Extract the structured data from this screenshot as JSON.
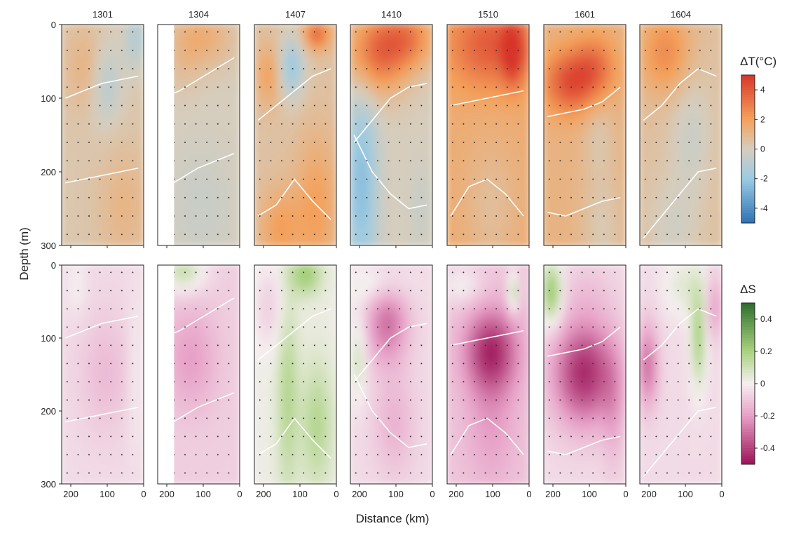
{
  "chart_data": {
    "type": "heatmap",
    "xlabel": "Distance (km)",
    "ylabel": "Depth (m)",
    "xlim": [
      225,
      0
    ],
    "ylim": [
      0,
      300
    ],
    "x_ticks": [
      200,
      100,
      0
    ],
    "y_ticks": [
      0,
      100,
      200,
      300
    ],
    "columns": [
      "1301",
      "1304",
      "1407",
      "1410",
      "1510",
      "1601",
      "1604"
    ],
    "rows": [
      {
        "variable": "temperature",
        "colorbar_label": "ΔT(°C)",
        "range": [
          -5,
          5
        ],
        "ticks": [
          "4",
          "2",
          "0",
          "-2",
          "-4"
        ],
        "tick_values": [
          4,
          2,
          0,
          -2,
          -4
        ],
        "colors": [
          [
            -5,
            "#2f73b5"
          ],
          [
            -2,
            "#9ccbe3"
          ],
          [
            0,
            "#d6cdbd"
          ],
          [
            2,
            "#f4a15b"
          ],
          [
            5,
            "#d8362a"
          ]
        ],
        "panels": [
          {
            "base": 0.3,
            "coverage": [
              225,
              0
            ],
            "features": [
              [
                100,
                80,
                -1.5,
                30,
                40
              ],
              [
                20,
                20,
                -1.5,
                20,
                30
              ],
              [
                150,
                60,
                1,
                40,
                40
              ],
              [
                50,
                250,
                0.8,
                50,
                60
              ]
            ],
            "white_lines": [
              [
                100,
                90,
                80,
                75,
                70
              ],
              [
                215,
                210,
                205,
                200,
                195
              ]
            ]
          },
          {
            "base": 0.0,
            "coverage": [
              180,
              0
            ],
            "features": [
              [
                100,
                20,
                1.5,
                60,
                30
              ],
              [
                150,
                60,
                0.5,
                30,
                30
              ],
              [
                100,
                250,
                -0.5,
                60,
                60
              ]
            ],
            "white_lines": [
              [
                100,
                90,
                75,
                60,
                45
              ],
              [
                225,
                210,
                195,
                185,
                175
              ]
            ]
          },
          {
            "base": 0.5,
            "coverage": [
              225,
              0
            ],
            "features": [
              [
                120,
                60,
                -2.5,
                25,
                30
              ],
              [
                50,
                15,
                3,
                25,
                15
              ],
              [
                180,
                70,
                1.5,
                25,
                30
              ],
              [
                50,
                250,
                1.5,
                40,
                70
              ],
              [
                150,
                280,
                1.5,
                40,
                40
              ]
            ],
            "white_lines": [
              [
                130,
                110,
                90,
                70,
                60
              ],
              [
                260,
                245,
                210,
                240,
                265
              ]
            ]
          },
          {
            "base": 0.0,
            "coverage": [
              225,
              0
            ],
            "features": [
              [
                150,
                40,
                3.5,
                60,
                40
              ],
              [
                190,
                220,
                -2.5,
                30,
                100
              ],
              [
                60,
                20,
                2.5,
                50,
                30
              ],
              [
                30,
                250,
                -0.5,
                20,
                40
              ]
            ],
            "white_lines": [
              [
                160,
                130,
                100,
                85,
                80
              ],
              [
                150,
                200,
                230,
                250,
                245
              ]
            ]
          },
          {
            "base": 1.5,
            "coverage": [
              225,
              0
            ],
            "features": [
              [
                100,
                30,
                2.5,
                80,
                40
              ],
              [
                40,
                40,
                3,
                20,
                30
              ],
              [
                100,
                250,
                -0.8,
                50,
                60
              ]
            ],
            "white_lines": [
              [
                110,
                105,
                100,
                95,
                90
              ],
              [
                260,
                220,
                210,
                230,
                260
              ]
            ]
          },
          {
            "base": 1.2,
            "coverage": [
              225,
              0
            ],
            "features": [
              [
                150,
                80,
                3,
                50,
                30
              ],
              [
                80,
                60,
                2,
                40,
                30
              ],
              [
                70,
                150,
                -0.8,
                30,
                40
              ],
              [
                60,
                280,
                -1,
                40,
                60
              ]
            ],
            "white_lines": [
              [
                125,
                120,
                115,
                105,
                85
              ],
              [
                255,
                260,
                250,
                240,
                235
              ]
            ]
          },
          {
            "base": 0.6,
            "coverage": [
              225,
              0
            ],
            "features": [
              [
                150,
                40,
                2,
                50,
                40
              ],
              [
                80,
                150,
                -1,
                40,
                60
              ],
              [
                130,
                280,
                -0.8,
                50,
                50
              ]
            ],
            "white_lines": [
              [
                130,
                110,
                80,
                60,
                70
              ],
              [
                290,
                260,
                230,
                200,
                195
              ]
            ]
          }
        ]
      },
      {
        "variable": "salinity",
        "colorbar_label": "ΔS",
        "range": [
          -0.5,
          0.5
        ],
        "ticks": [
          "0.4",
          "0.2",
          "0",
          "-0.2",
          "-0.4"
        ],
        "tick_values": [
          0.4,
          0.2,
          0,
          -0.2,
          -0.4
        ],
        "colors": [
          [
            -0.5,
            "#9c1458"
          ],
          [
            -0.2,
            "#e7a0c7"
          ],
          [
            0,
            "#f5eff0"
          ],
          [
            0.2,
            "#a9d27f"
          ],
          [
            0.5,
            "#2f6e2e"
          ]
        ],
        "panels": [
          {
            "base": -0.05,
            "coverage": [
              225,
              0
            ],
            "features": [
              [
                180,
                30,
                0.05,
                20,
                30
              ],
              [
                100,
                150,
                -0.08,
                50,
                60
              ],
              [
                20,
                150,
                0.05,
                15,
                80
              ]
            ],
            "white_lines": [
              [
                100,
                90,
                80,
                75,
                70
              ],
              [
                215,
                210,
                205,
                200,
                195
              ]
            ]
          },
          {
            "base": -0.08,
            "coverage": [
              180,
              0
            ],
            "features": [
              [
                150,
                10,
                0.2,
                40,
                20
              ],
              [
                130,
                130,
                -0.12,
                50,
                50
              ]
            ],
            "white_lines": [
              [
                100,
                90,
                75,
                60,
                45
              ],
              [
                225,
                210,
                195,
                185,
                175
              ]
            ]
          },
          {
            "base": 0.02,
            "coverage": [
              225,
              0
            ],
            "features": [
              [
                130,
                180,
                0.15,
                20,
                100
              ],
              [
                50,
                220,
                0.15,
                30,
                60
              ],
              [
                180,
                60,
                -0.1,
                30,
                40
              ],
              [
                80,
                15,
                0.2,
                30,
                20
              ]
            ],
            "white_lines": [
              [
                130,
                110,
                90,
                70,
                60
              ],
              [
                260,
                245,
                210,
                240,
                265
              ]
            ]
          },
          {
            "base": -0.05,
            "coverage": [
              225,
              0
            ],
            "features": [
              [
                120,
                80,
                -0.25,
                40,
                40
              ],
              [
                200,
                130,
                0.15,
                15,
                40
              ],
              [
                150,
                30,
                0.1,
                60,
                20
              ],
              [
                100,
                220,
                -0.1,
                40,
                50
              ]
            ],
            "white_lines": [
              [
                160,
                130,
                100,
                85,
                80
              ],
              [
                150,
                200,
                230,
                250,
                245
              ]
            ]
          },
          {
            "base": -0.1,
            "coverage": [
              225,
              0
            ],
            "features": [
              [
                100,
                120,
                -0.35,
                50,
                40
              ],
              [
                40,
                40,
                0.25,
                10,
                20
              ],
              [
                180,
                30,
                0.1,
                40,
                20
              ],
              [
                100,
                220,
                -0.1,
                50,
                60
              ]
            ],
            "white_lines": [
              [
                110,
                105,
                100,
                95,
                90
              ],
              [
                260,
                220,
                210,
                230,
                260
              ]
            ]
          },
          {
            "base": -0.05,
            "coverage": [
              225,
              0
            ],
            "features": [
              [
                200,
                40,
                0.3,
                20,
                30
              ],
              [
                110,
                150,
                -0.4,
                60,
                50
              ],
              [
                100,
                40,
                -0.05,
                50,
                30
              ],
              [
                30,
                200,
                -0.1,
                20,
                60
              ]
            ],
            "white_lines": [
              [
                125,
                120,
                115,
                105,
                85
              ],
              [
                255,
                260,
                250,
                240,
                235
              ]
            ]
          },
          {
            "base": -0.05,
            "coverage": [
              225,
              0
            ],
            "features": [
              [
                200,
                140,
                -0.25,
                20,
                40
              ],
              [
                60,
                100,
                0.25,
                15,
                50
              ],
              [
                100,
                30,
                0.1,
                40,
                30
              ],
              [
                20,
                60,
                -0.15,
                15,
                30
              ]
            ],
            "white_lines": [
              [
                130,
                110,
                80,
                60,
                70
              ],
              [
                290,
                260,
                230,
                200,
                195
              ]
            ]
          }
        ]
      }
    ]
  }
}
